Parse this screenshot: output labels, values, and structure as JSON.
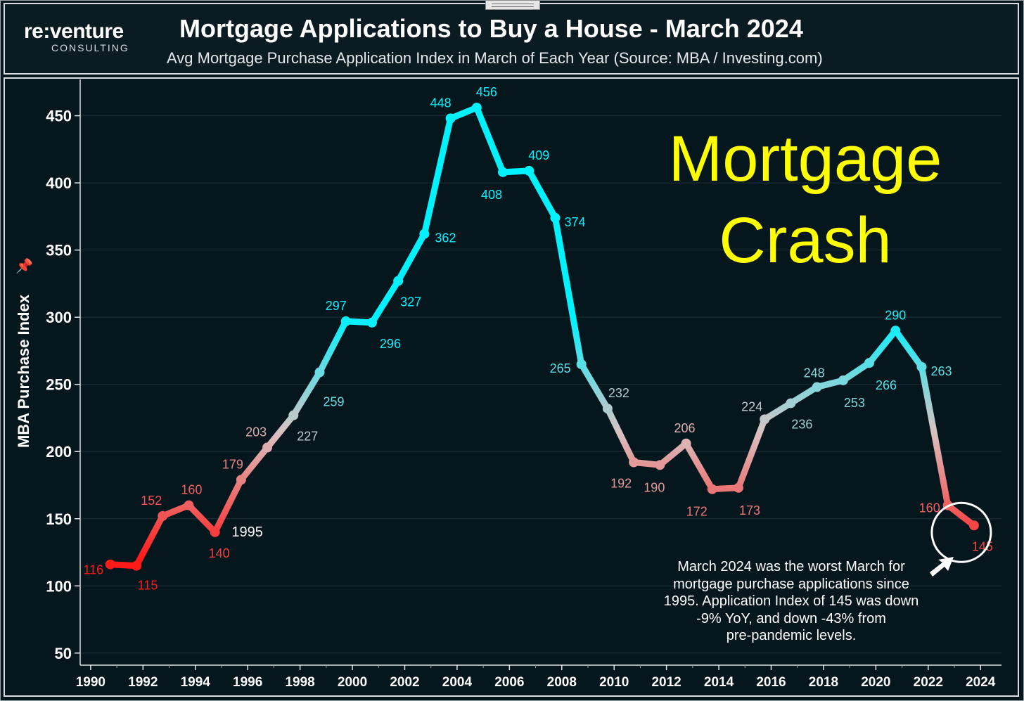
{
  "logo": {
    "main": "re:venture",
    "sub": "CONSULTING"
  },
  "header": {
    "title": "Mortgage Applications to Buy a House - March 2024",
    "subtitle": "Avg Mortgage Purchase Application Index in March of Each Year (Source: MBA / Investing.com)"
  },
  "overlay_text": {
    "line1": "Mortgage",
    "line2": "Crash"
  },
  "annotation": [
    "March 2024 was the worst March for",
    "mortgage purchase applications since",
    "1995. Application Index of 145 was down",
    "-9% YoY, and down -43% from",
    "pre-pandemic levels."
  ],
  "icons": {
    "pin": "pin-icon",
    "arrow": "arrow-pointer-icon"
  },
  "colors": {
    "low": "#ff1a1a",
    "mid": "#d9c3c3",
    "high": "#00f2ff",
    "accent": "#ffff00",
    "background": "#06161d"
  },
  "chart_data": {
    "type": "line",
    "title": "Mortgage Applications to Buy a House - March 2024",
    "subtitle": "Avg Mortgage Purchase Application Index in March of Each Year (Source: MBA / Investing.com)",
    "ylabel": "MBA Purchase Index",
    "xlabel": "",
    "xlim": [
      1989.6,
      2024.8
    ],
    "ylim": [
      41,
      477
    ],
    "yticks": [
      50,
      100,
      150,
      200,
      250,
      300,
      350,
      400,
      450
    ],
    "xticks": [
      1990,
      1992,
      1994,
      1996,
      1998,
      2000,
      2002,
      2004,
      2006,
      2008,
      2010,
      2012,
      2014,
      2016,
      2018,
      2020,
      2022,
      2024
    ],
    "grid": true,
    "series": [
      {
        "x": [
          1990.75,
          1991.75,
          1992.75,
          1993.75,
          1994.75,
          1995.75,
          1996.75,
          1997.75,
          1998.75,
          1999.75,
          2000.75,
          2001.75,
          2002.75,
          2003.75,
          2004.75,
          2005.75,
          2006.75,
          2007.75,
          2008.75,
          2009.75,
          2010.75,
          2011.75,
          2012.75,
          2013.75,
          2014.75,
          2015.75,
          2016.75,
          2017.75,
          2018.75,
          2019.75,
          2020.75,
          2021.75,
          2022.75,
          2023.75
        ],
        "values": [
          116,
          115,
          152,
          160,
          140,
          179,
          203,
          227,
          259,
          297,
          296,
          327,
          362,
          448,
          456,
          408,
          409,
          374,
          265,
          232,
          192,
          190,
          206,
          172,
          173,
          224,
          236,
          248,
          253,
          266,
          290,
          263,
          160,
          145
        ],
        "labels": [
          "116",
          "115",
          "152",
          "160",
          "140",
          "179",
          "203",
          "227",
          "259",
          "297",
          "296",
          "327",
          "362",
          "448",
          "456",
          "408",
          "409",
          "374",
          "265",
          "232",
          "192",
          "190",
          "206",
          "172",
          "173",
          "224",
          "236",
          "248",
          "253",
          "266",
          "290",
          "263",
          "160",
          "145"
        ]
      }
    ],
    "callout_label": {
      "text": "1995",
      "x": 1994.75
    },
    "highlight": {
      "x": 2023.75,
      "value": 145
    }
  }
}
